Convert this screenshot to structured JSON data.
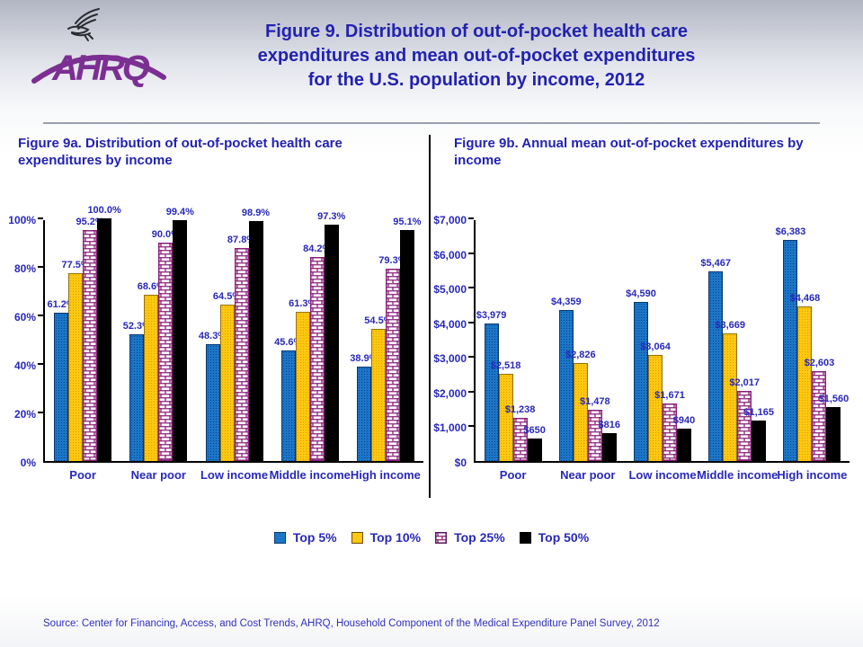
{
  "header": {
    "logo_text": "AHRQ",
    "title_lines": [
      "Figure 9. Distribution of out-of-pocket health care",
      "expenditures and mean out-of-pocket expenditures",
      "for the U.S. population by income, 2012"
    ]
  },
  "chart_data": [
    {
      "type": "bar",
      "title": "Figure 9a. Distribution of out-of-pocket health care expenditures by income",
      "categories": [
        "Poor",
        "Near poor",
        "Low income",
        "Middle income",
        "High income"
      ],
      "series": [
        {
          "name": "Top 5%",
          "style": "top5",
          "values": [
            61.2,
            52.3,
            48.3,
            45.6,
            38.9
          ],
          "labels": [
            "61.2%",
            "52.3%",
            "48.3%",
            "45.6%",
            "38.9%"
          ]
        },
        {
          "name": "Top 10%",
          "style": "top10",
          "values": [
            77.5,
            68.6,
            64.5,
            61.3,
            54.5
          ],
          "labels": [
            "77.5%",
            "68.6%",
            "64.5%",
            "61.3%",
            "54.5%"
          ]
        },
        {
          "name": "Top 25%",
          "style": "top25",
          "values": [
            95.2,
            90.0,
            87.8,
            84.2,
            79.3
          ],
          "labels": [
            "95.2%",
            "90.0%",
            "87.8%",
            "84.2%",
            "79.3%"
          ]
        },
        {
          "name": "Top 50%",
          "style": "top50",
          "values": [
            100.0,
            99.4,
            98.9,
            97.3,
            95.1
          ],
          "labels": [
            "100.0%",
            "99.4%",
            "98.9%",
            "97.3%",
            "95.1%"
          ]
        }
      ],
      "ylim": [
        0,
        100
      ],
      "yticks": [
        "0%",
        "20%",
        "40%",
        "60%",
        "80%",
        "100%"
      ],
      "grid": false,
      "legend_position": "shared-bottom"
    },
    {
      "type": "bar",
      "title": "Figure 9b. Annual mean out-of-pocket expenditures by income",
      "categories": [
        "Poor",
        "Near poor",
        "Low income",
        "Middle income",
        "High income"
      ],
      "series": [
        {
          "name": "Top 5%",
          "style": "top5",
          "values": [
            3979,
            4359,
            4590,
            5467,
            6383
          ],
          "labels": [
            "$3,979",
            "$4,359",
            "$4,590",
            "$5,467",
            "$6,383"
          ]
        },
        {
          "name": "Top 10%",
          "style": "top10",
          "values": [
            2518,
            2826,
            3064,
            3669,
            4468
          ],
          "labels": [
            "$2,518",
            "$2,826",
            "$3,064",
            "$3,669",
            "$4,468"
          ]
        },
        {
          "name": "Top 25%",
          "style": "top25",
          "values": [
            1238,
            1478,
            1671,
            2017,
            2603
          ],
          "labels": [
            "$1,238",
            "$1,478",
            "$1,671",
            "$2,017",
            "$2,603"
          ]
        },
        {
          "name": "Top 50%",
          "style": "top50",
          "values": [
            650,
            816,
            940,
            1165,
            1560
          ],
          "labels": [
            "$650",
            "$816",
            "$940",
            "$1,165",
            "$1,560"
          ]
        }
      ],
      "ylim": [
        0,
        7000
      ],
      "yticks": [
        "$0",
        "$1,000",
        "$2,000",
        "$3,000",
        "$4,000",
        "$5,000",
        "$6,000",
        "$7,000"
      ],
      "grid": false,
      "legend_position": "shared-bottom"
    }
  ],
  "legend": {
    "entries": [
      {
        "label": "Top 5%",
        "style": "top5"
      },
      {
        "label": "Top 10%",
        "style": "top10"
      },
      {
        "label": "Top 25%",
        "style": "top25"
      },
      {
        "label": "Top 50%",
        "style": "top50"
      }
    ]
  },
  "source_note": "Source: Center for Financing, Access, and Cost Trends, AHRQ, Household Component of the Medical Expenditure Panel Survey, 2012",
  "colors": {
    "top5": "#1b76c8",
    "top10": "#fec80f",
    "top25_bg": "#ffffff",
    "top25_line": "#8a1f7a",
    "top50": "#000000",
    "title_text": "#2222b0",
    "label_text": "#2828bb",
    "source_text": "#3030bb",
    "logo_purple": "#7c2f92",
    "axis": "#000000"
  }
}
